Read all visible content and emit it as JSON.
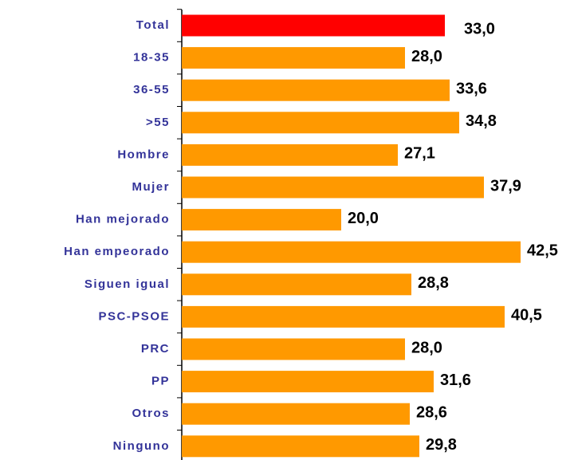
{
  "chart_data": {
    "type": "barh",
    "categories": [
      "Total",
      "18-35",
      "36-55",
      ">55",
      "Hombre",
      "Mujer",
      "Han mejorado",
      "Han empeorado",
      "Siguen igual",
      "PSC-PSOE",
      "PRC",
      "PP",
      "Otros",
      "Ninguno"
    ],
    "values": [
      33.0,
      28.0,
      33.6,
      34.8,
      27.1,
      37.9,
      20.0,
      42.5,
      28.8,
      40.5,
      28.0,
      31.6,
      28.6,
      29.8
    ],
    "value_labels": [
      "33,0",
      "28,0",
      "33,6",
      "34,8",
      "27,1",
      "37,9",
      "20,0",
      "42,5",
      "28,8",
      "40,5",
      "28,0",
      "31,6",
      "28,6",
      "29,8"
    ],
    "colors": [
      "#ff0000",
      "#ff9900",
      "#ff9900",
      "#ff9900",
      "#ff9900",
      "#ff9900",
      "#ff9900",
      "#ff9900",
      "#ff9900",
      "#ff9900",
      "#ff9900",
      "#ff9900",
      "#ff9900",
      "#ff9900"
    ],
    "xlim": [
      0,
      49.2
    ]
  }
}
